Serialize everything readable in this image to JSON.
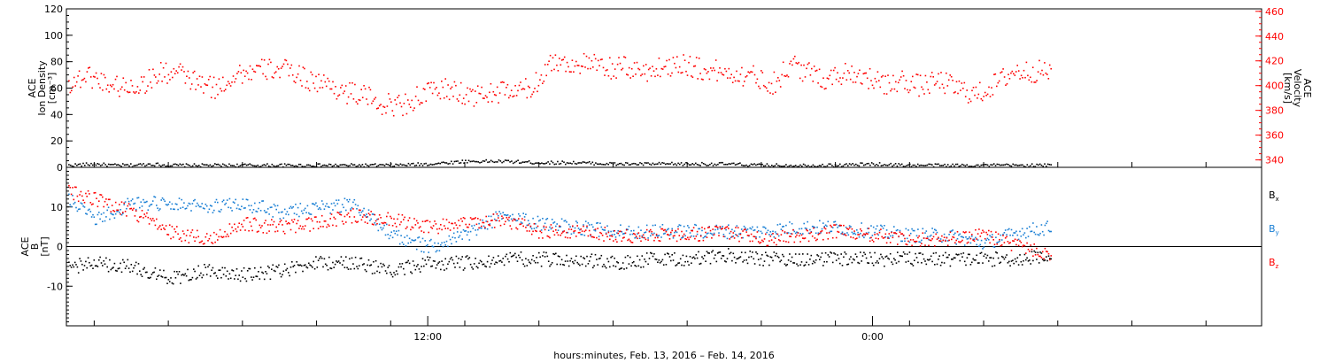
{
  "colors": {
    "density": "#000000",
    "velocity": "#ff0000",
    "bx": "#000000",
    "by": "#1a7fd4",
    "bz": "#ff0000",
    "axis": "#000000"
  },
  "x_axis": {
    "label": "hours:minutes, Feb. 13, 2016 – Feb. 14, 2016",
    "unit": "hours since 00:00 Feb. 13, 2016",
    "range": [
      2.25,
      34.5
    ],
    "major_ticks": [
      {
        "value": 12,
        "label": "12:00"
      },
      {
        "value": 24,
        "label": "0:00"
      }
    ]
  },
  "chart_data": [
    {
      "type": "scatter",
      "panel": "top",
      "left_axis_label": [
        "ACE",
        "Ion Density",
        "[cm⁻³]"
      ],
      "right_axis_label": [
        "ACE",
        "Velocity",
        "[km/s]"
      ],
      "left_ylim": [
        0,
        120
      ],
      "left_ticks": [
        "0",
        "20",
        "40",
        "60",
        "80",
        "100",
        "120"
      ],
      "right_ylim": [
        334,
        462
      ],
      "right_ticks": [
        "340",
        "360",
        "380",
        "400",
        "420",
        "440",
        "460"
      ],
      "x_range_hours": [
        2.25,
        34.5
      ],
      "series": [
        {
          "axis": "left",
          "color_key": "density",
          "x": [
            2.3,
            3.0,
            3.5,
            4.0,
            4.5,
            5.0,
            6.0,
            7.0,
            8.0,
            9.0,
            10.0,
            11.0,
            12.0,
            13.0,
            14.0,
            15.0,
            16.0,
            17.0,
            18.0,
            19.0,
            20.0,
            21.0,
            22.0,
            23.0,
            24.0,
            25.0,
            26.0,
            27.0,
            28.0,
            28.8
          ],
          "y": [
            2,
            3,
            2,
            2,
            3,
            2,
            2,
            2,
            2,
            2,
            2,
            2,
            3,
            5,
            5,
            4,
            4,
            3,
            3,
            3,
            3,
            2,
            2,
            2,
            3,
            2,
            2,
            2,
            2,
            2
          ]
        },
        {
          "axis": "right",
          "color_key": "velocity",
          "x": [
            2.3,
            2.8,
            3.3,
            3.8,
            4.3,
            4.8,
            5.3,
            5.8,
            6.3,
            6.8,
            7.3,
            7.8,
            8.3,
            8.8,
            9.3,
            9.8,
            10.3,
            10.8,
            11.3,
            11.8,
            12.3,
            12.8,
            13.3,
            13.8,
            14.3,
            14.8,
            15.3,
            15.8,
            16.3,
            16.8,
            17.3,
            17.8,
            18.3,
            18.8,
            19.3,
            19.8,
            20.3,
            20.8,
            21.3,
            21.8,
            22.3,
            22.8,
            23.3,
            23.8,
            24.3,
            24.8,
            25.3,
            25.8,
            26.3,
            26.8,
            27.3,
            27.8,
            28.3,
            28.8
          ],
          "y": [
            402,
            409,
            403,
            399,
            402,
            411,
            410,
            402,
            398,
            410,
            412,
            414,
            412,
            405,
            401,
            395,
            392,
            385,
            385,
            392,
            398,
            395,
            392,
            395,
            396,
            398,
            420,
            418,
            418,
            414,
            415,
            412,
            415,
            419,
            414,
            412,
            410,
            408,
            402,
            418,
            410,
            406,
            412,
            408,
            400,
            405,
            400,
            404,
            398,
            393,
            402,
            412,
            412,
            412
          ]
        }
      ]
    },
    {
      "type": "scatter",
      "panel": "bottom",
      "left_axis_label": [
        "ACE",
        "B",
        "[nT]"
      ],
      "ylim": [
        -20,
        20
      ],
      "ticks": [
        "-10",
        "0",
        "10"
      ],
      "zero_line": true,
      "x_range_hours": [
        2.25,
        34.5
      ],
      "series": [
        {
          "name": "Bx",
          "color_key": "bx",
          "x": [
            2.3,
            3.0,
            4.0,
            5.0,
            6.0,
            7.0,
            8.0,
            9.0,
            10.0,
            11.0,
            12.0,
            13.0,
            14.0,
            15.0,
            16.0,
            17.0,
            18.0,
            19.0,
            20.0,
            21.0,
            22.0,
            23.0,
            24.0,
            25.0,
            26.0,
            27.0,
            28.0,
            28.8
          ],
          "y": [
            -5,
            -4,
            -5,
            -8,
            -6,
            -7,
            -6,
            -4,
            -4,
            -6,
            -4,
            -4,
            -3,
            -3,
            -3,
            -4,
            -3,
            -3,
            -2,
            -3,
            -3,
            -3,
            -3,
            -3,
            -3,
            -3,
            -3,
            -2
          ]
        },
        {
          "name": "By",
          "color_key": "by",
          "x": [
            2.3,
            3.0,
            4.0,
            5.0,
            6.0,
            7.0,
            8.0,
            9.0,
            10.0,
            11.0,
            12.0,
            13.0,
            14.0,
            15.0,
            16.0,
            17.0,
            18.0,
            19.0,
            20.0,
            21.0,
            22.0,
            23.0,
            24.0,
            25.0,
            26.0,
            27.0,
            28.0,
            28.8
          ],
          "y": [
            12,
            7,
            11,
            11,
            10,
            11,
            9,
            10,
            11,
            3,
            0,
            3,
            8,
            6,
            5,
            4,
            4,
            4,
            4,
            4,
            5,
            5,
            4,
            3,
            3,
            1,
            4,
            5
          ]
        },
        {
          "name": "Bz",
          "color_key": "bz",
          "x": [
            2.3,
            3.0,
            4.0,
            5.0,
            6.0,
            7.0,
            8.0,
            9.0,
            10.0,
            11.0,
            12.0,
            13.0,
            14.0,
            15.0,
            16.0,
            17.0,
            18.0,
            19.0,
            20.0,
            21.0,
            22.0,
            23.0,
            24.0,
            25.0,
            26.0,
            27.0,
            28.0,
            28.8
          ],
          "y": [
            14,
            12,
            9,
            4,
            2,
            6,
            5,
            6,
            8,
            7,
            5,
            6,
            7,
            4,
            4,
            3,
            3,
            3,
            4,
            2,
            3,
            4,
            3,
            2,
            2,
            3,
            0,
            -2
          ]
        }
      ]
    }
  ]
}
